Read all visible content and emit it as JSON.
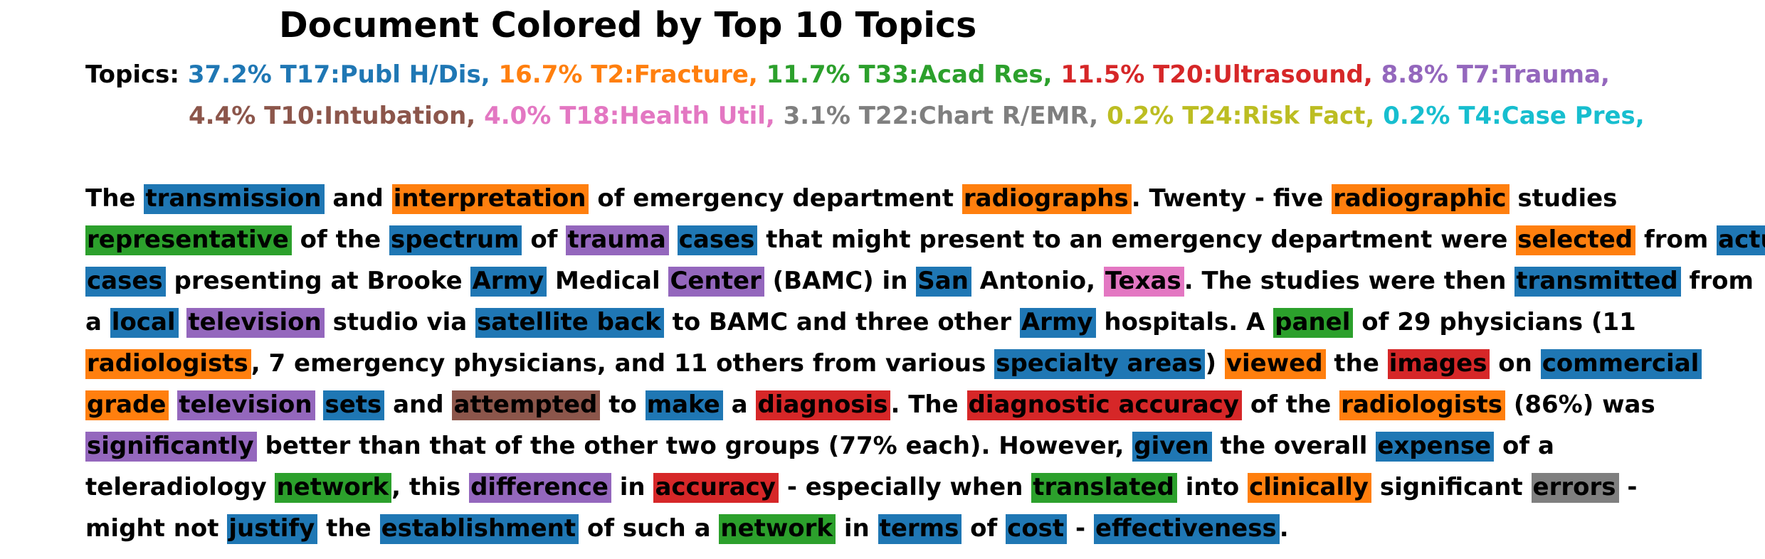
{
  "title": "Document Colored by Top 10 Topics",
  "topics_label": "Topics:",
  "topics": [
    {
      "label": "37.2% T17:Publ H/Dis,",
      "color": "#1f77b4"
    },
    {
      "label": "16.7% T2:Fracture,",
      "color": "#ff7f0e"
    },
    {
      "label": "11.7% T33:Acad Res,",
      "color": "#2ca02c"
    },
    {
      "label": "11.5% T20:Ultrasound,",
      "color": "#d62728"
    },
    {
      "label": "8.8% T7:Trauma,",
      "color": "#9467bd"
    },
    {
      "label": "4.4% T10:Intubation,",
      "color": "#8c564b"
    },
    {
      "label": "4.0% T18:Health Util,",
      "color": "#e377c2"
    },
    {
      "label": "3.1% T22:Chart R/EMR,",
      "color": "#7f7f7f"
    },
    {
      "label": "0.2% T24:Risk Fact,",
      "color": "#bcbd22"
    },
    {
      "label": "0.2% T4:Case Pres,",
      "color": "#17becf"
    }
  ],
  "lines": [
    [
      {
        "t": "The"
      },
      {
        "t": "transmission",
        "c": 0
      },
      {
        "t": "and"
      },
      {
        "t": "interpretation",
        "c": 1
      },
      {
        "t": "of emergency department"
      },
      {
        "t": "radiographs",
        "c": 1
      },
      {
        "t": ". Twenty - five",
        "np": true
      },
      {
        "t": "radiographic",
        "c": 1
      },
      {
        "t": "studies"
      }
    ],
    [
      {
        "t": "representative",
        "c": 2
      },
      {
        "t": "of the"
      },
      {
        "t": "spectrum",
        "c": 0
      },
      {
        "t": "of"
      },
      {
        "t": "trauma",
        "c": 4
      },
      {
        "t": "cases",
        "c": 0
      },
      {
        "t": "that might present to an emergency department were"
      },
      {
        "t": "selected",
        "c": 1
      },
      {
        "t": "from"
      },
      {
        "t": "actual",
        "c": 0
      }
    ],
    [
      {
        "t": "cases",
        "c": 0
      },
      {
        "t": "presenting at Brooke"
      },
      {
        "t": "Army",
        "c": 0
      },
      {
        "t": "Medical"
      },
      {
        "t": "Center",
        "c": 4
      },
      {
        "t": "(BAMC) in"
      },
      {
        "t": "San",
        "c": 0
      },
      {
        "t": "Antonio,"
      },
      {
        "t": "Texas",
        "c": 6
      },
      {
        "t": ". The studies were then",
        "np": true
      },
      {
        "t": "transmitted",
        "c": 0
      },
      {
        "t": "from"
      }
    ],
    [
      {
        "t": "a"
      },
      {
        "t": "local",
        "c": 0
      },
      {
        "t": "television",
        "c": 4
      },
      {
        "t": "studio via"
      },
      {
        "t": "satellite back",
        "c": 0
      },
      {
        "t": "to BAMC and three other"
      },
      {
        "t": "Army",
        "c": 0
      },
      {
        "t": "hospitals. A"
      },
      {
        "t": "panel",
        "c": 2
      },
      {
        "t": "of 29 physicians (11"
      }
    ],
    [
      {
        "t": "radiologists",
        "c": 1
      },
      {
        "t": ", 7 emergency physicians, and 11 others from various",
        "np": true
      },
      {
        "t": "specialty areas",
        "c": 0
      },
      {
        "t": ")",
        "np": true
      },
      {
        "t": "viewed",
        "c": 1
      },
      {
        "t": "the"
      },
      {
        "t": "images",
        "c": 3
      },
      {
        "t": "on"
      },
      {
        "t": "commercial",
        "c": 0
      }
    ],
    [
      {
        "t": "grade",
        "c": 1
      },
      {
        "t": "television",
        "c": 4
      },
      {
        "t": "sets",
        "c": 0
      },
      {
        "t": "and"
      },
      {
        "t": "attempted",
        "c": 5
      },
      {
        "t": "to"
      },
      {
        "t": "make",
        "c": 0
      },
      {
        "t": "a"
      },
      {
        "t": "diagnosis",
        "c": 3
      },
      {
        "t": ". The",
        "np": true
      },
      {
        "t": "diagnostic accuracy",
        "c": 3
      },
      {
        "t": "of the"
      },
      {
        "t": "radiologists",
        "c": 1
      },
      {
        "t": "(86%) was"
      }
    ],
    [
      {
        "t": "significantly",
        "c": 4
      },
      {
        "t": "better than that of the other two groups (77% each). However,"
      },
      {
        "t": "given",
        "c": 0
      },
      {
        "t": "the overall"
      },
      {
        "t": "expense",
        "c": 0
      },
      {
        "t": "of a"
      }
    ],
    [
      {
        "t": "teleradiology"
      },
      {
        "t": "network",
        "c": 2
      },
      {
        "t": ", this",
        "np": true
      },
      {
        "t": "difference",
        "c": 4
      },
      {
        "t": "in"
      },
      {
        "t": "accuracy",
        "c": 3
      },
      {
        "t": "- especially when"
      },
      {
        "t": "translated",
        "c": 2
      },
      {
        "t": "into"
      },
      {
        "t": "clinically",
        "c": 1
      },
      {
        "t": "significant"
      },
      {
        "t": "errors",
        "c": 7
      },
      {
        "t": "-"
      }
    ],
    [
      {
        "t": "might not"
      },
      {
        "t": "justify",
        "c": 0
      },
      {
        "t": "the"
      },
      {
        "t": "establishment",
        "c": 0
      },
      {
        "t": "of such a"
      },
      {
        "t": "network",
        "c": 2
      },
      {
        "t": "in"
      },
      {
        "t": "terms",
        "c": 0
      },
      {
        "t": "of"
      },
      {
        "t": "cost",
        "c": 0
      },
      {
        "t": "-"
      },
      {
        "t": "effectiveness",
        "c": 0
      },
      {
        "t": ".",
        "np": true
      }
    ]
  ]
}
